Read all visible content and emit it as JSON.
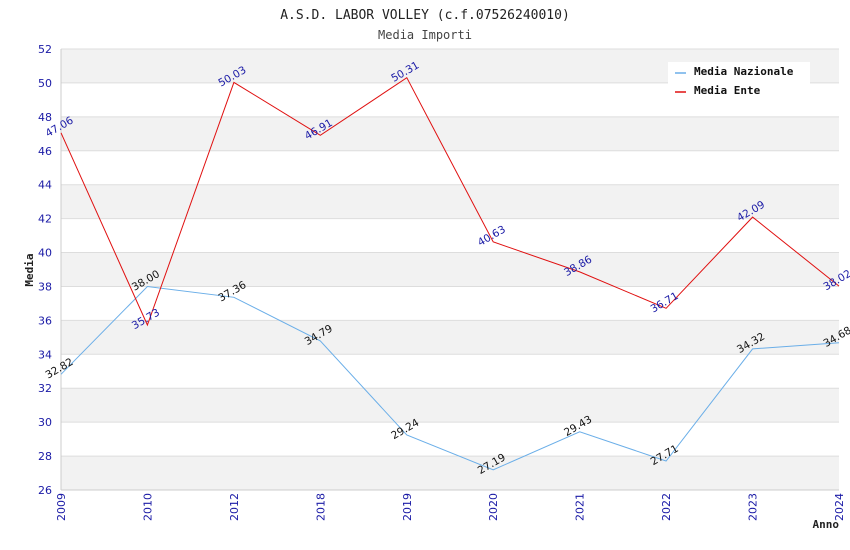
{
  "chart_data": {
    "type": "line",
    "title": "A.S.D. LABOR VOLLEY (c.f.07526240010)",
    "subtitle": "Media Importi",
    "xlabel": "Anno",
    "ylabel": "Media",
    "categories": [
      "2009",
      "2010",
      "2012",
      "2018",
      "2019",
      "2020",
      "2021",
      "2022",
      "2023",
      "2024"
    ],
    "ylim": [
      26,
      52
    ],
    "yticks": [
      26,
      28,
      30,
      32,
      34,
      36,
      38,
      40,
      42,
      44,
      46,
      48,
      50,
      52
    ],
    "series": [
      {
        "name": "Media Nazionale",
        "color": "#6aaee8",
        "values": [
          32.82,
          38.0,
          37.36,
          34.79,
          29.24,
          27.19,
          29.43,
          27.71,
          34.32,
          34.68
        ],
        "labels": [
          "32.82",
          "38.00",
          "37.36",
          "34.79",
          "29.24",
          "27.19",
          "29.43",
          "27.71",
          "34.32",
          "34.68"
        ]
      },
      {
        "name": "Media Ente",
        "color": "#e01010",
        "values": [
          47.06,
          35.73,
          50.03,
          46.91,
          50.31,
          40.63,
          38.86,
          36.71,
          42.09,
          38.02
        ],
        "labels": [
          "47.06",
          "35.73",
          "50.03",
          "46.91",
          "50.31",
          "40.63",
          "38.86",
          "36.71",
          "42.09",
          "38.02"
        ]
      }
    ],
    "legend_position": "top-right",
    "grid": true
  },
  "colors": {
    "band": "#f2f2f2",
    "grid": "#dddddd",
    "tick_text": "#1a1aa6"
  }
}
